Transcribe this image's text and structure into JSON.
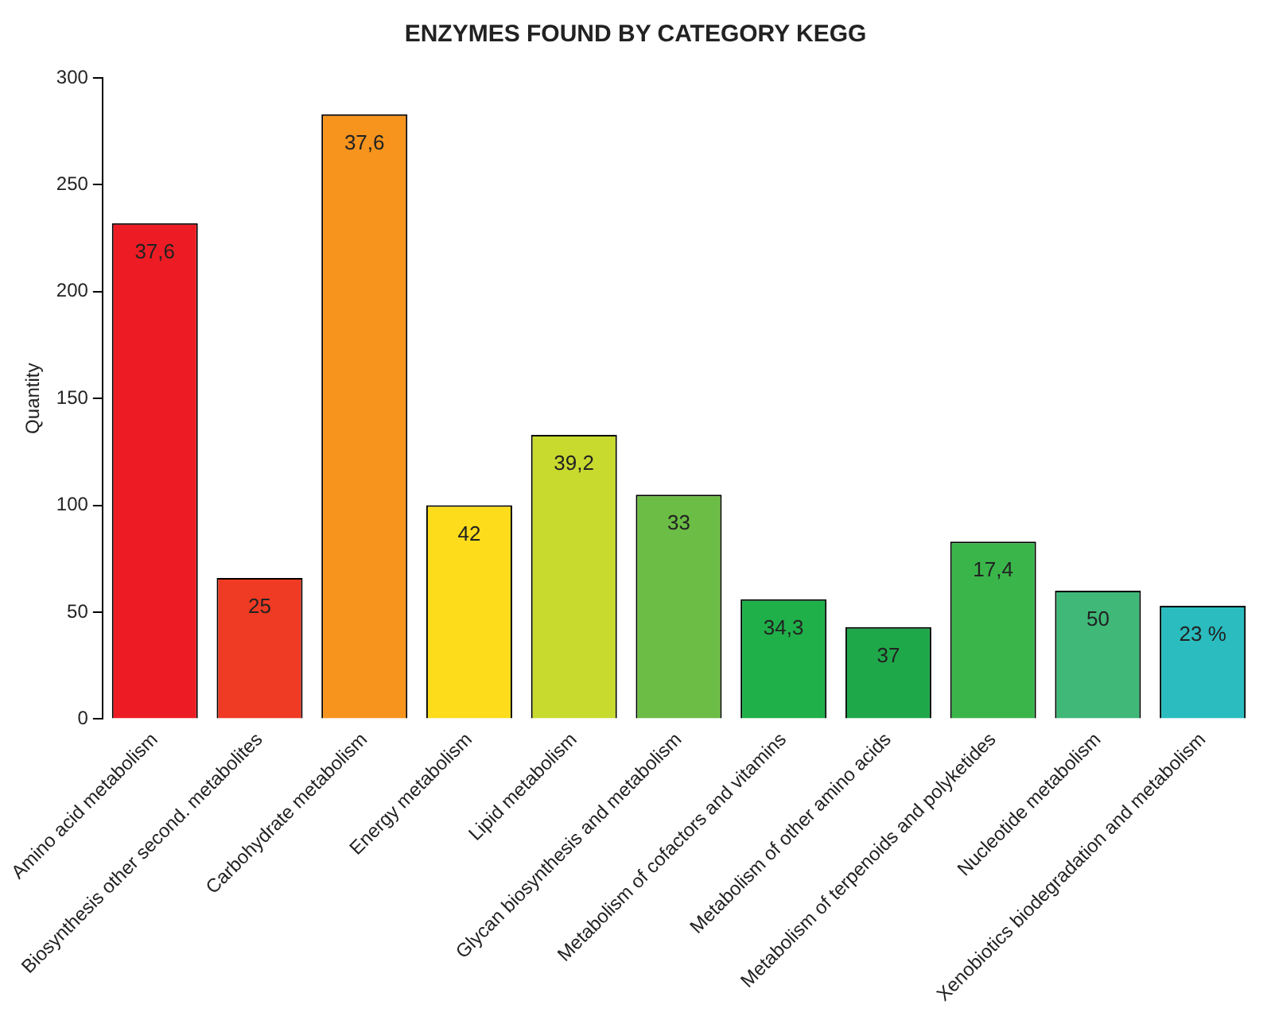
{
  "chart_data": {
    "type": "bar",
    "title": "ENZYMES FOUND BY CATEGORY KEGG",
    "ylabel": "Quantity",
    "categories": [
      "Amino acid metabolism",
      "Biosynthesis other second. metabolites",
      "Carbohydrate metabolism",
      "Energy metabolism",
      "Lipid metabolism",
      "Glycan biosynthesis and metabolism",
      "Metabolism of cofactors and vitamins",
      "Metabolism of other amino acids",
      "Metabolism of terpenoids and polyketides",
      "Nucleotide metabolism",
      "Xenobiotics biodegradation and metabolism"
    ],
    "values": [
      232,
      66,
      283,
      100,
      133,
      105,
      56,
      43,
      83,
      60,
      53
    ],
    "colors": [
      "#ed1c24",
      "#ef3b23",
      "#f7941d",
      "#fcdc1b",
      "#c8da2e",
      "#6cbd45",
      "#20b04a",
      "#1fa84a",
      "#3ab54a",
      "#3fb878",
      "#2bbcbf"
    ],
    "annotations": [
      {
        "text": "37,6",
        "x": "Amino acid metabolism",
        "y": 232
      },
      {
        "text": "25",
        "x": "Biosynthesis other second. metabolites",
        "y": 66
      },
      {
        "text": "37,6",
        "x": "Carbohydrate metabolism",
        "y": 283
      },
      {
        "text": "42",
        "x": "Energy metabolism",
        "y": 100
      },
      {
        "text": "39,2",
        "x": "Lipid metabolism",
        "y": 133
      },
      {
        "text": "33",
        "x": "Glycan biosynthesis and metabolism",
        "y": 105
      },
      {
        "text": "34,3",
        "x": "Metabolism of cofactors and vitamins",
        "y": 56
      },
      {
        "text": "37",
        "x": "Metabolism of other amino acids",
        "y": 43
      },
      {
        "text": "17,4",
        "x": "Metabolism of terpenoids and polyketides",
        "y": 83
      },
      {
        "text": "50",
        "x": "Nucleotide metabolism",
        "y": 60
      },
      {
        "text": "23 %",
        "x": "Xenobiotics biodegradation and metabolism",
        "y": 53
      }
    ],
    "ylim": [
      0,
      300
    ],
    "yticks": [
      0,
      50,
      100,
      150,
      200,
      250,
      300
    ],
    "grid": false,
    "legend": false
  }
}
